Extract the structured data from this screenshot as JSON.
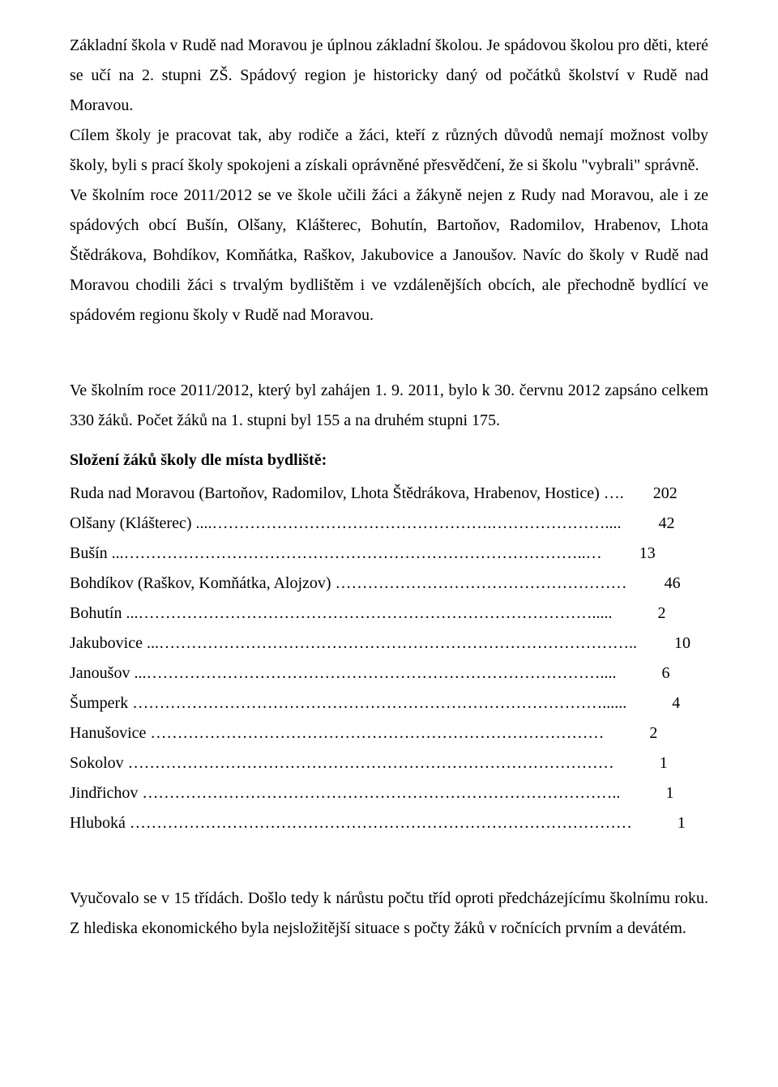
{
  "paragraphs": {
    "p1": "Základní škola v Rudě nad Moravou je úplnou základní školou. Je spádovou školou pro děti, které se učí na 2. stupni ZŠ. Spádový region je historicky daný od počátků školství v Rudě nad Moravou.",
    "p2": "Cílem školy je pracovat tak, aby rodiče a žáci, kteří z různých důvodů nemají možnost volby školy, byli s prací školy spokojeni a získali oprávněné přesvědčení, že si školu \"vybrali\" správně.",
    "p3": "Ve školním roce 2011/2012 se ve škole učili žáci a žákyně nejen z Rudy nad Moravou, ale i ze spádových obcí Bušín, Olšany, Klášterec, Bohutín, Bartoňov, Radomilov, Hrabenov, Lhota Štědrákova, Bohdíkov, Komňátka, Raškov, Jakubovice a Janoušov. Navíc do školy v Rudě nad Moravou chodili žáci s trvalým bydlištěm i ve vzdálenějších obcích, ale přechodně bydlící ve spádovém regionu školy v Rudě nad Moravou.",
    "p4": "Ve školním roce 2011/2012, který byl zahájen  1. 9. 2011, bylo  k 30. červnu 2012 zapsáno celkem 330 žáků. Počet žáků na 1. stupni byl 155  a na druhém stupni 175.",
    "heading": "Složení žáků školy dle místa bydliště:",
    "p5": "Vyučovalo se v 15 třídách. Došlo tedy k nárůstu počtu tříd oproti předcházejícímu školnímu roku. Z hlediska ekonomického byla nejsložitější situace s počty žáků  v ročnících  prvním a devátém."
  },
  "list": [
    {
      "label": "Ruda nad Moravou (Bartoňov, Radomilov, Lhota Štědrákova, Hrabenov, Hostice) ….",
      "value": "202"
    },
    {
      "label": "Olšany (Klášterec) ....…………………………………………….…………………....",
      "value": "42"
    },
    {
      "label": "Bušín ...…………………………………………………………………………..…",
      "value": "13"
    },
    {
      "label": "Bohdíkov (Raškov, Komňátka, Alojzov) ………………………………………………",
      "value": "46"
    },
    {
      "label": "Bohutín  ...………………………………………………………………………….....",
      "value": "2"
    },
    {
      "label": "Jakubovice ...……………………………………………………………………………..",
      "value": "10"
    },
    {
      "label": "Janoušov ...…………………………………………………………………………....",
      "value": "6"
    },
    {
      "label": "Šumperk ……………………………………………………………………………......",
      "value": "4"
    },
    {
      "label": "Hanušovice …………………………………………………………………………",
      "value": "2"
    },
    {
      "label": "Sokolov ………………………………………………………………………………",
      "value": "1"
    },
    {
      "label": "Jindřichov ……………………………………………………………………………..",
      "value": "1"
    },
    {
      "label": "Hluboká …………………………………………………………………………………",
      "value": "1"
    }
  ]
}
